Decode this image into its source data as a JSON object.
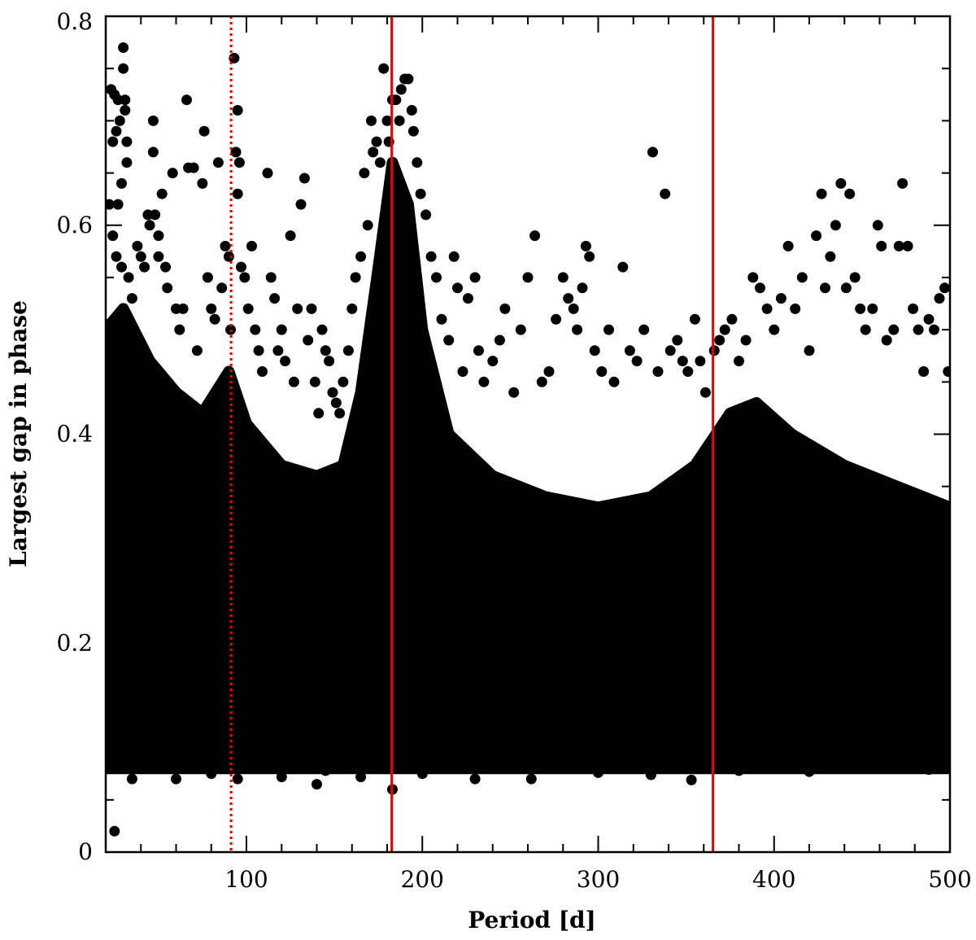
{
  "chart_data": {
    "type": "scatter",
    "title": "",
    "xlabel": "Period [d]",
    "ylabel": "Largest gap in phase",
    "xlim": [
      20,
      500
    ],
    "ylim": [
      0,
      0.8
    ],
    "xticks": [
      100,
      200,
      300,
      400,
      500
    ],
    "yticks": [
      0,
      0.2,
      0.4,
      0.6,
      0.8
    ],
    "xtick_labels": [
      "100",
      "200",
      "300",
      "400",
      "500"
    ],
    "ytick_labels": [
      "0",
      "0.2",
      "0.4",
      "0.6",
      "0.8"
    ],
    "grid": false,
    "point_color": "#000000",
    "marker": "filled-circle",
    "vertical_lines": [
      {
        "x": 91.3,
        "style": "dotted",
        "color": "#ee0000"
      },
      {
        "x": 182.6,
        "style": "solid",
        "color": "#ee0000"
      },
      {
        "x": 365.25,
        "style": "solid",
        "color": "#ee0000"
      }
    ],
    "dense_envelope": [
      {
        "x": 20,
        "lo": 0.08,
        "hi": 0.5
      },
      {
        "x": 30,
        "lo": 0.08,
        "hi": 0.52
      },
      {
        "x": 45,
        "lo": 0.08,
        "hi": 0.47
      },
      {
        "x": 60,
        "lo": 0.08,
        "hi": 0.44
      },
      {
        "x": 75,
        "lo": 0.08,
        "hi": 0.42
      },
      {
        "x": 90,
        "lo": 0.08,
        "hi": 0.46
      },
      {
        "x": 100,
        "lo": 0.08,
        "hi": 0.41
      },
      {
        "x": 120,
        "lo": 0.08,
        "hi": 0.37
      },
      {
        "x": 140,
        "lo": 0.08,
        "hi": 0.36
      },
      {
        "x": 155,
        "lo": 0.08,
        "hi": 0.37
      },
      {
        "x": 165,
        "lo": 0.08,
        "hi": 0.44
      },
      {
        "x": 175,
        "lo": 0.08,
        "hi": 0.56
      },
      {
        "x": 183,
        "lo": 0.08,
        "hi": 0.66
      },
      {
        "x": 192,
        "lo": 0.08,
        "hi": 0.62
      },
      {
        "x": 200,
        "lo": 0.08,
        "hi": 0.5
      },
      {
        "x": 215,
        "lo": 0.08,
        "hi": 0.4
      },
      {
        "x": 240,
        "lo": 0.08,
        "hi": 0.36
      },
      {
        "x": 270,
        "lo": 0.08,
        "hi": 0.34
      },
      {
        "x": 300,
        "lo": 0.08,
        "hi": 0.33
      },
      {
        "x": 330,
        "lo": 0.08,
        "hi": 0.34
      },
      {
        "x": 355,
        "lo": 0.08,
        "hi": 0.37
      },
      {
        "x": 375,
        "lo": 0.08,
        "hi": 0.42
      },
      {
        "x": 390,
        "lo": 0.08,
        "hi": 0.43
      },
      {
        "x": 410,
        "lo": 0.08,
        "hi": 0.4
      },
      {
        "x": 440,
        "lo": 0.08,
        "hi": 0.37
      },
      {
        "x": 470,
        "lo": 0.08,
        "hi": 0.35
      },
      {
        "x": 500,
        "lo": 0.08,
        "hi": 0.33
      }
    ],
    "outlier_points": [
      [
        23,
        0.73
      ],
      [
        25,
        0.725
      ],
      [
        27,
        0.72
      ],
      [
        26,
        0.69
      ],
      [
        24,
        0.68
      ],
      [
        28,
        0.7
      ],
      [
        30,
        0.77
      ],
      [
        30,
        0.75
      ],
      [
        31,
        0.72
      ],
      [
        31,
        0.71
      ],
      [
        32,
        0.68
      ],
      [
        32,
        0.66
      ],
      [
        29,
        0.64
      ],
      [
        27,
        0.62
      ],
      [
        22,
        0.62
      ],
      [
        24,
        0.59
      ],
      [
        26,
        0.57
      ],
      [
        29,
        0.56
      ],
      [
        33,
        0.55
      ],
      [
        35,
        0.53
      ],
      [
        25,
        0.02
      ],
      [
        38,
        0.58
      ],
      [
        40,
        0.57
      ],
      [
        42,
        0.56
      ],
      [
        44,
        0.61
      ],
      [
        45,
        0.6
      ],
      [
        47,
        0.7
      ],
      [
        47,
        0.67
      ],
      [
        48,
        0.61
      ],
      [
        50,
        0.59
      ],
      [
        50,
        0.57
      ],
      [
        52,
        0.63
      ],
      [
        54,
        0.56
      ],
      [
        55,
        0.54
      ],
      [
        58,
        0.65
      ],
      [
        60,
        0.52
      ],
      [
        62,
        0.5
      ],
      [
        64,
        0.52
      ],
      [
        66,
        0.72
      ],
      [
        67,
        0.655
      ],
      [
        70,
        0.655
      ],
      [
        72,
        0.48
      ],
      [
        75,
        0.64
      ],
      [
        76,
        0.69
      ],
      [
        78,
        0.55
      ],
      [
        80,
        0.52
      ],
      [
        82,
        0.51
      ],
      [
        84,
        0.66
      ],
      [
        86,
        0.54
      ],
      [
        88,
        0.58
      ],
      [
        90,
        0.57
      ],
      [
        91,
        0.5
      ],
      [
        93,
        0.76
      ],
      [
        94,
        0.67
      ],
      [
        95,
        0.71
      ],
      [
        96,
        0.66
      ],
      [
        95,
        0.63
      ],
      [
        97,
        0.56
      ],
      [
        99,
        0.55
      ],
      [
        101,
        0.52
      ],
      [
        103,
        0.58
      ],
      [
        105,
        0.5
      ],
      [
        107,
        0.48
      ],
      [
        109,
        0.46
      ],
      [
        112,
        0.65
      ],
      [
        114,
        0.55
      ],
      [
        116,
        0.53
      ],
      [
        118,
        0.48
      ],
      [
        120,
        0.5
      ],
      [
        122,
        0.47
      ],
      [
        125,
        0.59
      ],
      [
        127,
        0.45
      ],
      [
        129,
        0.52
      ],
      [
        131,
        0.62
      ],
      [
        133,
        0.645
      ],
      [
        135,
        0.49
      ],
      [
        137,
        0.52
      ],
      [
        139,
        0.45
      ],
      [
        141,
        0.42
      ],
      [
        143,
        0.5
      ],
      [
        145,
        0.48
      ],
      [
        147,
        0.47
      ],
      [
        149,
        0.44
      ],
      [
        151,
        0.43
      ],
      [
        153,
        0.42
      ],
      [
        155,
        0.45
      ],
      [
        158,
        0.48
      ],
      [
        160,
        0.52
      ],
      [
        162,
        0.55
      ],
      [
        165,
        0.57
      ],
      [
        167,
        0.65
      ],
      [
        169,
        0.6
      ],
      [
        171,
        0.7
      ],
      [
        172,
        0.67
      ],
      [
        174,
        0.68
      ],
      [
        176,
        0.66
      ],
      [
        178,
        0.75
      ],
      [
        180,
        0.7
      ],
      [
        181,
        0.68
      ],
      [
        183,
        0.72
      ],
      [
        185,
        0.72
      ],
      [
        187,
        0.7
      ],
      [
        188,
        0.73
      ],
      [
        190,
        0.74
      ],
      [
        192,
        0.74
      ],
      [
        194,
        0.71
      ],
      [
        195,
        0.69
      ],
      [
        197,
        0.66
      ],
      [
        199,
        0.63
      ],
      [
        202,
        0.61
      ],
      [
        205,
        0.57
      ],
      [
        208,
        0.55
      ],
      [
        211,
        0.51
      ],
      [
        215,
        0.49
      ],
      [
        218,
        0.57
      ],
      [
        220,
        0.54
      ],
      [
        223,
        0.46
      ],
      [
        226,
        0.53
      ],
      [
        230,
        0.55
      ],
      [
        232,
        0.48
      ],
      [
        235,
        0.45
      ],
      [
        240,
        0.47
      ],
      [
        244,
        0.49
      ],
      [
        247,
        0.52
      ],
      [
        252,
        0.44
      ],
      [
        256,
        0.5
      ],
      [
        260,
        0.55
      ],
      [
        264,
        0.59
      ],
      [
        268,
        0.45
      ],
      [
        272,
        0.46
      ],
      [
        276,
        0.51
      ],
      [
        280,
        0.55
      ],
      [
        283,
        0.53
      ],
      [
        286,
        0.52
      ],
      [
        288,
        0.5
      ],
      [
        291,
        0.54
      ],
      [
        293,
        0.58
      ],
      [
        295,
        0.57
      ],
      [
        298,
        0.48
      ],
      [
        302,
        0.46
      ],
      [
        306,
        0.5
      ],
      [
        309,
        0.45
      ],
      [
        314,
        0.56
      ],
      [
        318,
        0.48
      ],
      [
        322,
        0.47
      ],
      [
        326,
        0.5
      ],
      [
        331,
        0.67
      ],
      [
        334,
        0.46
      ],
      [
        338,
        0.63
      ],
      [
        341,
        0.48
      ],
      [
        345,
        0.49
      ],
      [
        348,
        0.47
      ],
      [
        351,
        0.46
      ],
      [
        355,
        0.51
      ],
      [
        358,
        0.47
      ],
      [
        361,
        0.44
      ],
      [
        366,
        0.48
      ],
      [
        369,
        0.49
      ],
      [
        372,
        0.5
      ],
      [
        376,
        0.51
      ],
      [
        380,
        0.47
      ],
      [
        384,
        0.49
      ],
      [
        388,
        0.55
      ],
      [
        392,
        0.54
      ],
      [
        396,
        0.52
      ],
      [
        400,
        0.5
      ],
      [
        404,
        0.53
      ],
      [
        408,
        0.58
      ],
      [
        412,
        0.52
      ],
      [
        416,
        0.55
      ],
      [
        420,
        0.48
      ],
      [
        424,
        0.59
      ],
      [
        427,
        0.63
      ],
      [
        429,
        0.54
      ],
      [
        432,
        0.57
      ],
      [
        435,
        0.6
      ],
      [
        438,
        0.64
      ],
      [
        441,
        0.54
      ],
      [
        443,
        0.63
      ],
      [
        446,
        0.55
      ],
      [
        449,
        0.52
      ],
      [
        452,
        0.5
      ],
      [
        456,
        0.52
      ],
      [
        459,
        0.6
      ],
      [
        461,
        0.58
      ],
      [
        464,
        0.49
      ],
      [
        468,
        0.5
      ],
      [
        471,
        0.58
      ],
      [
        473,
        0.64
      ],
      [
        476,
        0.58
      ],
      [
        479,
        0.52
      ],
      [
        482,
        0.5
      ],
      [
        485,
        0.46
      ],
      [
        488,
        0.51
      ],
      [
        491,
        0.5
      ],
      [
        494,
        0.53
      ],
      [
        497,
        0.54
      ],
      [
        499,
        0.46
      ],
      [
        35,
        0.07
      ],
      [
        60,
        0.07
      ],
      [
        80,
        0.075
      ],
      [
        95,
        0.07
      ],
      [
        120,
        0.072
      ],
      [
        140,
        0.065
      ],
      [
        145,
        0.078
      ],
      [
        165,
        0.072
      ],
      [
        178,
        0.08
      ],
      [
        183,
        0.06
      ],
      [
        200,
        0.075
      ],
      [
        230,
        0.07
      ],
      [
        262,
        0.07
      ],
      [
        300,
        0.076
      ],
      [
        330,
        0.074
      ],
      [
        353,
        0.069
      ],
      [
        380,
        0.078
      ],
      [
        420,
        0.077
      ],
      [
        460,
        0.08
      ],
      [
        488,
        0.079
      ]
    ]
  }
}
